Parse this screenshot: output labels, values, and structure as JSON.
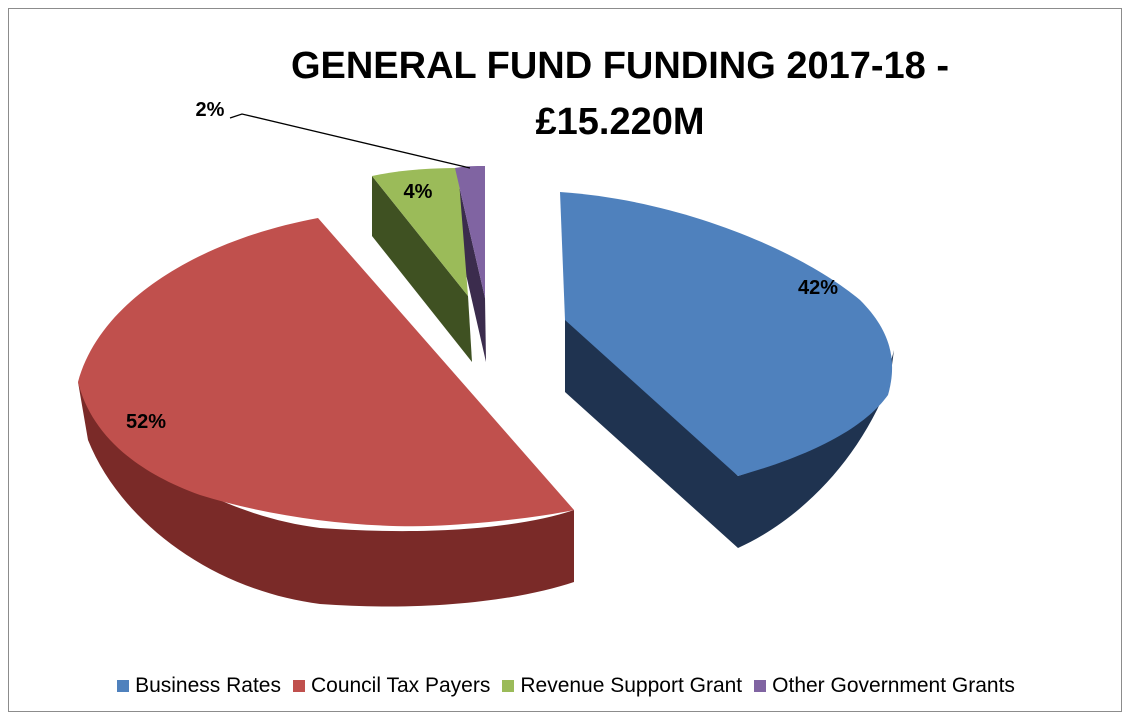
{
  "chart_data": {
    "type": "pie",
    "title_lines": [
      "GENERAL FUND FUNDING 2017-18 -",
      "£15.220M"
    ],
    "slices": [
      {
        "name": "Business Rates",
        "value": 42,
        "label": "42%",
        "color": "#4f81bd",
        "side_color": "#1f3350"
      },
      {
        "name": "Council Tax Payers",
        "value": 52,
        "label": "52%",
        "color": "#c0504d",
        "side_color": "#7a2a28"
      },
      {
        "name": "Revenue Support Grant",
        "value": 4,
        "label": "4%",
        "color": "#9bbb59",
        "side_color": "#3f5122"
      },
      {
        "name": "Other Government Grants",
        "value": 2,
        "label": "2%",
        "color": "#8064a2",
        "side_color": "#3b2c4d"
      }
    ],
    "exploded": true,
    "three_d": true,
    "legend": "bottom"
  }
}
